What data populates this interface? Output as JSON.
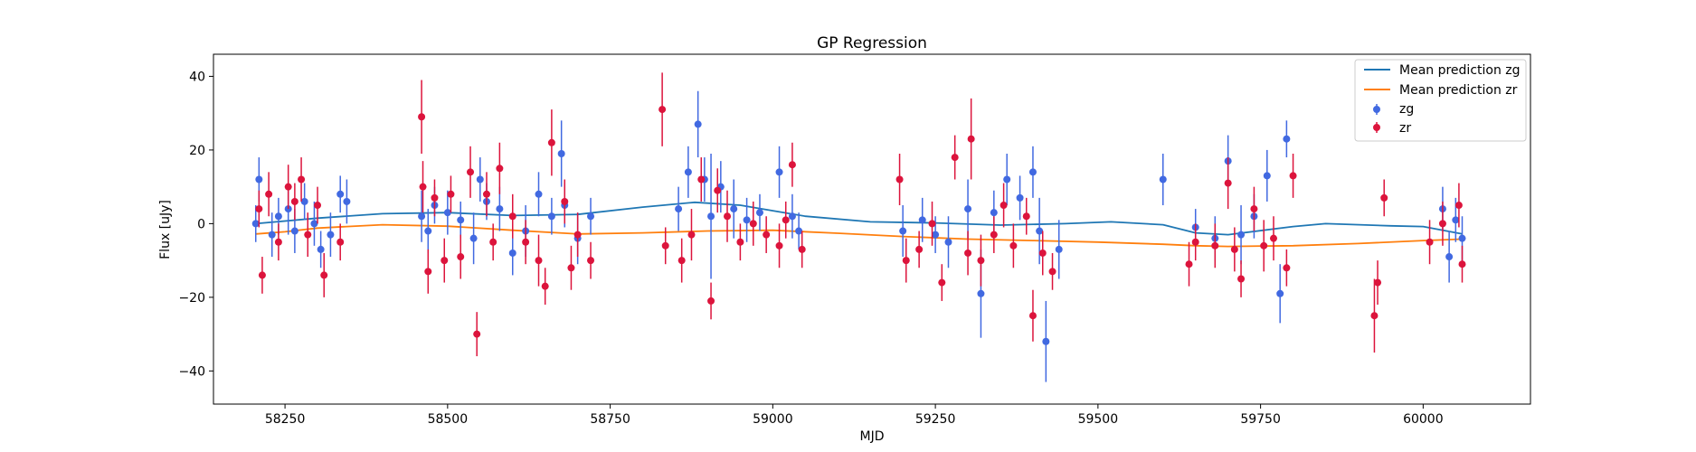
{
  "chart_data": {
    "type": "scatter",
    "title": "GP Regression",
    "xlabel": "MJD",
    "ylabel": "Flux [uJy]",
    "xlim": [
      58140,
      60165
    ],
    "ylim": [
      -49,
      46
    ],
    "x_ticks": [
      58250,
      58500,
      58750,
      59000,
      59250,
      59500,
      59750,
      60000
    ],
    "y_ticks": [
      -40,
      -20,
      0,
      20,
      40
    ],
    "grid": false,
    "legend_position": "top-right",
    "legend": [
      {
        "label": "Mean prediction zg",
        "kind": "line",
        "color": "#1f77b4"
      },
      {
        "label": "Mean prediction zr",
        "kind": "line",
        "color": "#ff7f0e"
      },
      {
        "label": "zg",
        "kind": "errorbar",
        "color": "#4169e1"
      },
      {
        "label": "zr",
        "kind": "errorbar",
        "color": "#dc143c"
      }
    ],
    "lines": [
      {
        "name": "Mean prediction zg",
        "color": "#1f77b4",
        "x": [
          58205,
          58300,
          58400,
          58500,
          58600,
          58700,
          58800,
          58880,
          58950,
          59000,
          59050,
          59150,
          59250,
          59350,
          59450,
          59520,
          59600,
          59650,
          59700,
          59800,
          59850,
          59950,
          60000,
          60060
        ],
        "y": [
          0.0,
          1.5,
          2.7,
          3.0,
          2.2,
          2.5,
          4.5,
          5.8,
          5.0,
          3.5,
          2.0,
          0.5,
          0.2,
          -0.4,
          0.0,
          0.5,
          -0.3,
          -2.5,
          -3.0,
          -0.8,
          0.0,
          -0.6,
          -0.8,
          -2.8
        ]
      },
      {
        "name": "Mean prediction zr",
        "color": "#ff7f0e",
        "x": [
          58205,
          58250,
          58300,
          58400,
          58500,
          58600,
          58700,
          58800,
          58900,
          59000,
          59100,
          59200,
          59300,
          59400,
          59500,
          59600,
          59650,
          59700,
          59800,
          59900,
          60000,
          60060
        ],
        "y": [
          -2.8,
          -2.2,
          -1.2,
          -0.3,
          -0.7,
          -1.8,
          -2.8,
          -2.5,
          -2.0,
          -1.8,
          -2.6,
          -3.5,
          -4.2,
          -4.6,
          -5.0,
          -5.6,
          -6.0,
          -6.2,
          -6.0,
          -5.4,
          -4.6,
          -4.2
        ]
      }
    ],
    "series": [
      {
        "name": "zg",
        "color": "#4169e1",
        "x": [
          58205,
          58210,
          58230,
          58240,
          58255,
          58265,
          58280,
          58295,
          58305,
          58320,
          58335,
          58345,
          58460,
          58470,
          58480,
          58500,
          58520,
          58540,
          58550,
          58560,
          58580,
          58600,
          58620,
          58640,
          58660,
          58675,
          58680,
          58700,
          58720,
          58855,
          58870,
          58885,
          58895,
          58905,
          58920,
          58940,
          58960,
          58980,
          59010,
          59030,
          59040,
          59200,
          59230,
          59250,
          59270,
          59300,
          59320,
          59340,
          59360,
          59380,
          59400,
          59410,
          59420,
          59440,
          59600,
          59650,
          59680,
          59700,
          59720,
          59740,
          59760,
          59780,
          59790,
          60030,
          60040,
          60050,
          60060
        ],
        "y": [
          0,
          12,
          -3,
          2,
          4,
          -2,
          6,
          0,
          -7,
          -3,
          8,
          6,
          2,
          -2,
          5,
          3,
          1,
          -4,
          12,
          6,
          4,
          -8,
          -2,
          8,
          2,
          19,
          5,
          -4,
          2,
          4,
          14,
          27,
          12,
          2,
          10,
          4,
          1,
          3,
          14,
          2,
          -2,
          -2,
          1,
          -3,
          -5,
          4,
          -19,
          3,
          12,
          7,
          14,
          -2,
          -32,
          -7,
          12,
          -1,
          -4,
          17,
          -3,
          2,
          13,
          -19,
          23,
          4,
          -9,
          1,
          -4
        ],
        "err": [
          5,
          6,
          6,
          5,
          7,
          6,
          5,
          6,
          5,
          6,
          5,
          6,
          7,
          6,
          5,
          6,
          5,
          7,
          6,
          5,
          6,
          6,
          7,
          6,
          5,
          9,
          6,
          7,
          5,
          6,
          7,
          9,
          6,
          17,
          7,
          8,
          6,
          5,
          7,
          6,
          5,
          7,
          6,
          5,
          7,
          8,
          12,
          6,
          7,
          6,
          7,
          9,
          11,
          8,
          7,
          5,
          6,
          7,
          8,
          6,
          7,
          8,
          5,
          6,
          7,
          6,
          6
        ]
      },
      {
        "name": "zr",
        "color": "#dc143c",
        "x": [
          58210,
          58215,
          58225,
          58240,
          58255,
          58265,
          58275,
          58285,
          58300,
          58310,
          58335,
          58460,
          58462,
          58470,
          58480,
          58495,
          58505,
          58520,
          58535,
          58545,
          58560,
          58570,
          58580,
          58600,
          58620,
          58640,
          58650,
          58660,
          58680,
          58690,
          58700,
          58720,
          58830,
          58835,
          58860,
          58875,
          58890,
          58905,
          58915,
          58930,
          58950,
          58970,
          58990,
          59010,
          59020,
          59030,
          59045,
          59195,
          59205,
          59225,
          59245,
          59260,
          59280,
          59300,
          59305,
          59320,
          59340,
          59355,
          59370,
          59390,
          59400,
          59415,
          59430,
          59640,
          59650,
          59680,
          59700,
          59710,
          59720,
          59740,
          59755,
          59770,
          59790,
          59800,
          59925,
          59930,
          59940,
          60010,
          60030,
          60055,
          60060
        ],
        "y": [
          4,
          -14,
          8,
          -5,
          10,
          6,
          12,
          -3,
          5,
          -14,
          -5,
          29,
          10,
          -13,
          7,
          -10,
          8,
          -9,
          14,
          -30,
          8,
          -5,
          15,
          2,
          -5,
          -10,
          -17,
          22,
          6,
          -12,
          -3,
          -10,
          31,
          -6,
          -10,
          -3,
          12,
          -21,
          9,
          2,
          -5,
          0,
          -3,
          -6,
          1,
          16,
          -7,
          12,
          -10,
          -7,
          0,
          -16,
          18,
          -8,
          23,
          -10,
          -3,
          5,
          -6,
          2,
          -25,
          -8,
          -13,
          -11,
          -5,
          -6,
          11,
          -7,
          -15,
          4,
          -6,
          -4,
          -12,
          13,
          -25,
          -16,
          7,
          -5,
          0,
          5,
          -11
        ],
        "err": [
          5,
          5,
          6,
          5,
          6,
          5,
          6,
          6,
          5,
          6,
          5,
          10,
          7,
          6,
          5,
          6,
          5,
          6,
          7,
          6,
          6,
          5,
          7,
          6,
          6,
          7,
          5,
          9,
          6,
          6,
          6,
          5,
          10,
          5,
          6,
          7,
          6,
          5,
          6,
          7,
          5,
          6,
          5,
          6,
          5,
          6,
          5,
          7,
          6,
          5,
          6,
          5,
          6,
          6,
          11,
          7,
          5,
          6,
          6,
          5,
          7,
          6,
          5,
          6,
          5,
          6,
          7,
          6,
          5,
          6,
          7,
          6,
          5,
          6,
          10,
          6,
          5,
          6,
          6,
          6,
          5
        ]
      }
    ]
  }
}
